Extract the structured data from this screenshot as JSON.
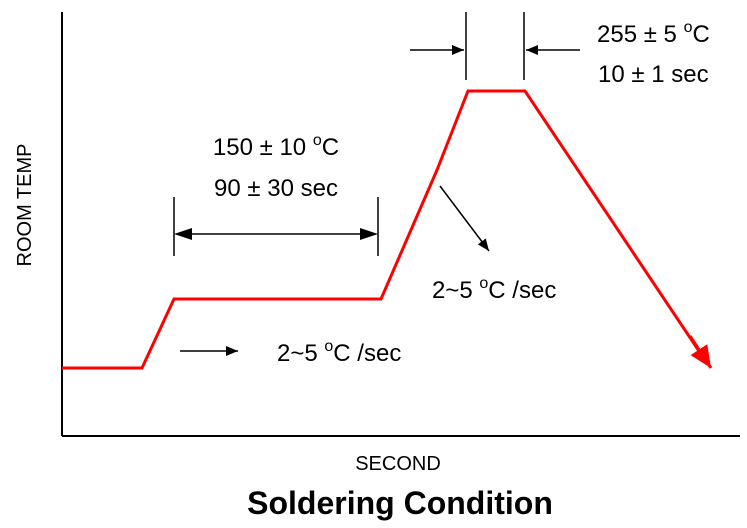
{
  "axes": {
    "y_label": "ROOM TEMP",
    "x_label": "SECOND"
  },
  "title": "Soldering Condition",
  "annotations": {
    "preheat_temp": "150 ± 10 °C",
    "preheat_time": "90 ± 30 sec",
    "ramp_up_rate": "2~5 °C /sec",
    "cool_down_rate": "2~5 °C /sec",
    "peak_temp": "255 ± 5 °C",
    "peak_time": "10 ± 1 sec"
  },
  "colors": {
    "profile": "#ff0000",
    "axis": "#000000"
  }
}
